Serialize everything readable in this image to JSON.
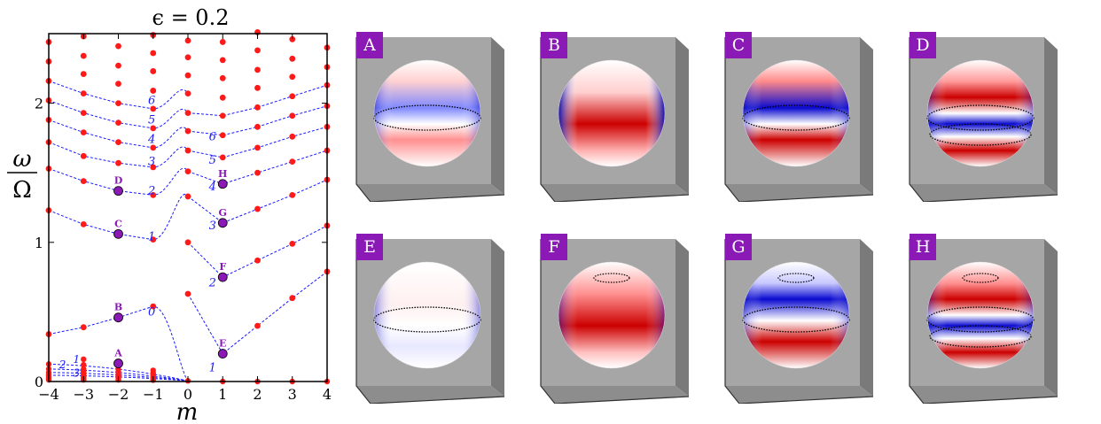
{
  "chart_data": {
    "type": "scatter",
    "title": "ϵ = 0.2",
    "xlabel": "m",
    "ylabel_num": "ω",
    "ylabel_den": "Ω",
    "xlim": [
      -4,
      4
    ],
    "ylim": [
      0,
      2.5
    ],
    "xticks": [
      -4,
      -3,
      -2,
      -1,
      0,
      1,
      2,
      3,
      4
    ],
    "xtick_labels": [
      "−4",
      "−3",
      "−2",
      "−1",
      "0",
      "1",
      "2",
      "3",
      "4"
    ],
    "yticks": [
      0,
      1,
      2
    ],
    "ytick_labels": [
      "0",
      "1",
      "2"
    ],
    "colors": {
      "points": "#ff1a1a",
      "curves": "#1a1aff",
      "marked": "#8a19b6"
    },
    "grid": false,
    "points": [
      {
        "m": -4,
        "omega": [
          0.34,
          1.23,
          1.53,
          1.72,
          1.88,
          2.02,
          2.16,
          2.3,
          2.44
        ]
      },
      {
        "m": -3,
        "omega": [
          0.39,
          1.13,
          1.44,
          1.62,
          1.79,
          1.93,
          2.07,
          2.21,
          2.34,
          2.48
        ]
      },
      {
        "m": -2,
        "omega": [
          0.46,
          1.06,
          1.37,
          1.57,
          1.72,
          1.86,
          2.0,
          2.14,
          2.27,
          2.41
        ]
      },
      {
        "m": -1,
        "omega": [
          0.54,
          1.02,
          1.34,
          1.54,
          1.68,
          1.82,
          1.96,
          2.09,
          2.23,
          2.36,
          2.49
        ]
      },
      {
        "m": 0,
        "omega": [
          0.63,
          1.0,
          1.33,
          1.51,
          1.66,
          1.8,
          1.93,
          2.07,
          2.2,
          2.33,
          2.45
        ]
      },
      {
        "m": 1,
        "omega": [
          0.2,
          0.75,
          1.14,
          1.42,
          1.61,
          1.77,
          1.91,
          2.04,
          2.18,
          2.31,
          2.44
        ]
      },
      {
        "m": 2,
        "omega": [
          0.4,
          0.87,
          1.24,
          1.5,
          1.68,
          1.83,
          1.97,
          2.11,
          2.24,
          2.38,
          2.51
        ]
      },
      {
        "m": 3,
        "omega": [
          0.6,
          0.99,
          1.34,
          1.58,
          1.76,
          1.91,
          2.05,
          2.19,
          2.32,
          2.46
        ]
      },
      {
        "m": 4,
        "omega": [
          0.79,
          1.12,
          1.45,
          1.66,
          1.83,
          1.98,
          2.13,
          2.26,
          2.4
        ]
      }
    ],
    "low_frequency_points": [
      {
        "m": -4,
        "omega": [
          0.125,
          0.09,
          0.065,
          0.05,
          0.04,
          0.03,
          0.02,
          0.012
        ]
      },
      {
        "m": -3,
        "omega": [
          0.16,
          0.12,
          0.09,
          0.07,
          0.05,
          0.035,
          0.022,
          0.012
        ]
      },
      {
        "m": -2,
        "omega": [
          0.125,
          0.09,
          0.07,
          0.05,
          0.035,
          0.022,
          0.012
        ]
      },
      {
        "m": -1,
        "omega": [
          0.08,
          0.06,
          0.045,
          0.03,
          0.02,
          0.01
        ]
      },
      {
        "m": 0,
        "omega": [
          0.005
        ]
      },
      {
        "m": 1,
        "omega": [
          0.0
        ]
      },
      {
        "m": 2,
        "omega": [
          0.0
        ]
      },
      {
        "m": 3,
        "omega": [
          0.0
        ]
      },
      {
        "m": 4,
        "omega": [
          0.0
        ]
      }
    ],
    "curve_labels_right": [
      {
        "label": "1",
        "m": 0.45,
        "omega": 0.1
      },
      {
        "label": "2",
        "m": 0.45,
        "omega": 0.71
      },
      {
        "label": "3",
        "m": 0.45,
        "omega": 1.12
      },
      {
        "label": "4",
        "m": 0.45,
        "omega": 1.4
      },
      {
        "label": "5",
        "m": 0.45,
        "omega": 1.59
      },
      {
        "label": "6",
        "m": 0.45,
        "omega": 1.76
      }
    ],
    "curve_labels_left": [
      {
        "label": "0",
        "m": -1.4,
        "omega": 0.5
      },
      {
        "label": "1",
        "m": -1.4,
        "omega": 1.04
      },
      {
        "label": "2",
        "m": -1.4,
        "omega": 1.37
      },
      {
        "label": "3",
        "m": -1.4,
        "omega": 1.58
      },
      {
        "label": "4",
        "m": -1.4,
        "omega": 1.74
      },
      {
        "label": "5",
        "m": -1.4,
        "omega": 1.88
      },
      {
        "label": "6",
        "m": -1.4,
        "omega": 2.02
      }
    ],
    "low_labels": [
      {
        "label": "1",
        "m": -3.3,
        "omega": 0.16
      },
      {
        "label": "2",
        "m": -3.7,
        "omega": 0.12
      },
      {
        "label": "3",
        "m": -3.3,
        "omega": 0.06
      }
    ],
    "marked_points": [
      {
        "label": "A",
        "m": -2,
        "omega": 0.13
      },
      {
        "label": "B",
        "m": -2,
        "omega": 0.46
      },
      {
        "label": "C",
        "m": -2,
        "omega": 1.06
      },
      {
        "label": "D",
        "m": -2,
        "omega": 1.37
      },
      {
        "label": "E",
        "m": 1,
        "omega": 0.2
      },
      {
        "label": "F",
        "m": 1,
        "omega": 0.75
      },
      {
        "label": "G",
        "m": 1,
        "omega": 1.14
      },
      {
        "label": "H",
        "m": 1,
        "omega": 1.42
      }
    ]
  },
  "panels": [
    {
      "label": "A",
      "pattern": "m-2 mode 1, low frequency",
      "equator_line": "dotted",
      "polar_lines": false
    },
    {
      "label": "B",
      "pattern": "m-2 mode 0",
      "equator_line": "none",
      "polar_lines": false
    },
    {
      "label": "C",
      "pattern": "m-2 mode 1",
      "equator_line": "dotted",
      "polar_lines": false
    },
    {
      "label": "D",
      "pattern": "m-2 mode 2",
      "equator_line": "dotted",
      "polar_lines": false
    },
    {
      "label": "E",
      "pattern": "m1 mode 1",
      "equator_line": "dotted",
      "polar_lines": false
    },
    {
      "label": "F",
      "pattern": "m1 mode 2",
      "equator_line": "none",
      "polar_lines": true
    },
    {
      "label": "G",
      "pattern": "m1 mode 3",
      "equator_line": "dotted",
      "polar_lines": true
    },
    {
      "label": "H",
      "pattern": "m1 mode 4",
      "equator_line": "dotted",
      "polar_lines": true
    }
  ],
  "colors": {
    "badge": "#8a19b6",
    "box": "#a6a6a6",
    "box_dark": "#7a7a7a",
    "red": "#cc0000",
    "blue": "#0a0ad0"
  }
}
